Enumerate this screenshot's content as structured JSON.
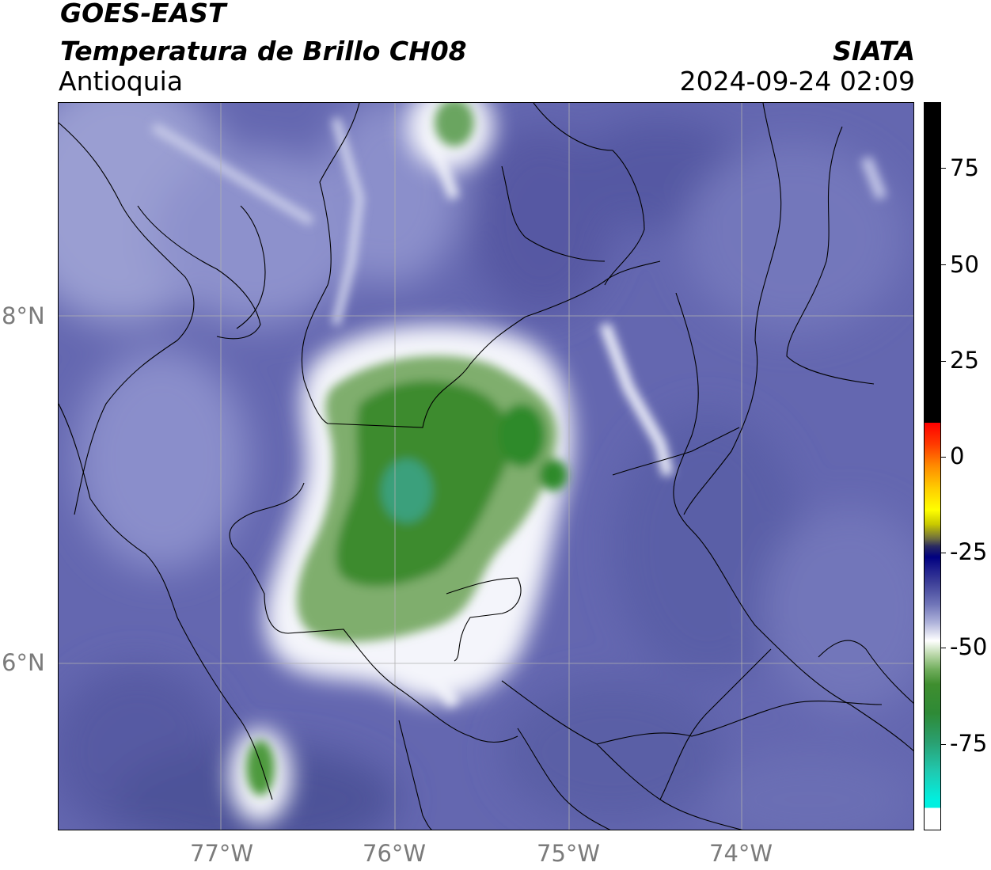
{
  "header": {
    "satellite": "GOES-EAST",
    "product": "Temperatura de Brillo CH08",
    "region": "Antioquia",
    "organization": "SIATA",
    "datetime": "2024-09-24 02:09"
  },
  "map": {
    "lat_labels": [
      {
        "value": 8,
        "text": "8°N"
      },
      {
        "value": 6,
        "text": "6°N"
      }
    ],
    "lon_labels": [
      {
        "value": -77,
        "text": "77°W"
      },
      {
        "value": -76,
        "text": "76°W"
      },
      {
        "value": -75,
        "text": "75°W"
      },
      {
        "value": -74,
        "text": "74°W"
      }
    ],
    "extent": {
      "lon_min": -77.95,
      "lon_max": -73.03,
      "lat_min": 5.06,
      "lat_max": 9.25
    },
    "colors": {
      "background_cloudfree": "#5a5fa8",
      "cold_cloud": "#3f8e2f",
      "cloud_edge": "#ffffff"
    }
  },
  "colorbar": {
    "ticks": [
      {
        "value": 75,
        "text": "75"
      },
      {
        "value": 50,
        "text": "50"
      },
      {
        "value": 25,
        "text": "25"
      },
      {
        "value": 0,
        "text": "0"
      },
      {
        "value": -25,
        "text": "-25"
      },
      {
        "value": -50,
        "text": "-50"
      },
      {
        "value": -75,
        "text": "-75"
      }
    ],
    "range": [
      -93,
      91
    ]
  }
}
